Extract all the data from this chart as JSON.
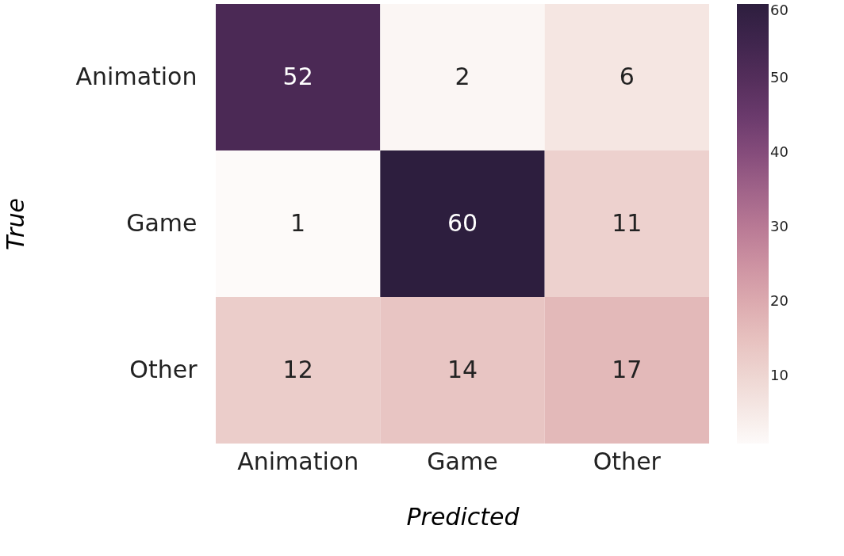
{
  "chart_data": {
    "type": "heatmap",
    "xlabel": "Predicted",
    "ylabel": "True",
    "categories": [
      "Animation",
      "Game",
      "Other"
    ],
    "y_categories": [
      "Animation",
      "Game",
      "Other"
    ],
    "cells": [
      [
        52,
        2,
        6
      ],
      [
        1,
        60,
        11
      ],
      [
        12,
        14,
        17
      ]
    ],
    "data_labels": true,
    "clim": [
      1,
      60
    ],
    "cticks": [
      10,
      20,
      30,
      40,
      50,
      60
    ]
  }
}
